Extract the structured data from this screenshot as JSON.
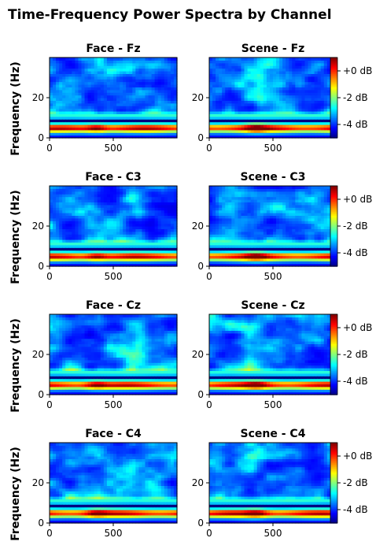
{
  "figure": {
    "title": "Time-Frequency Power Spectra by Channel"
  },
  "chart_data": {
    "type": "heatmap",
    "title": "Time-Frequency Power Spectra by Channel",
    "ylabel": "Frequency (Hz)",
    "xlim": [
      0,
      1000
    ],
    "ylim": [
      0,
      40
    ],
    "xticks": [
      0,
      500
    ],
    "yticks": [
      0,
      20
    ],
    "colormap": "jet",
    "color_range_db": [
      -5,
      1
    ],
    "colorbar_ticks": [
      {
        "value": 0,
        "label": "+0 dB"
      },
      {
        "value": -2,
        "label": "-2 dB"
      },
      {
        "value": -4,
        "label": "-4 dB"
      }
    ],
    "grid": false,
    "rows": [
      {
        "channel": "Fz",
        "panels": [
          {
            "title": "Face - Fz",
            "condition": "Face"
          },
          {
            "title": "Scene - Fz",
            "condition": "Scene"
          }
        ]
      },
      {
        "channel": "C3",
        "panels": [
          {
            "title": "Face - C3",
            "condition": "Face"
          },
          {
            "title": "Scene - C3",
            "condition": "Scene"
          }
        ]
      },
      {
        "channel": "Cz",
        "panels": [
          {
            "title": "Face - Cz",
            "condition": "Face"
          },
          {
            "title": "Scene - Cz",
            "condition": "Scene"
          }
        ]
      },
      {
        "channel": "C4",
        "panels": [
          {
            "title": "Face - C4",
            "condition": "Face"
          },
          {
            "title": "Scene - C4",
            "condition": "Scene"
          }
        ]
      }
    ]
  }
}
